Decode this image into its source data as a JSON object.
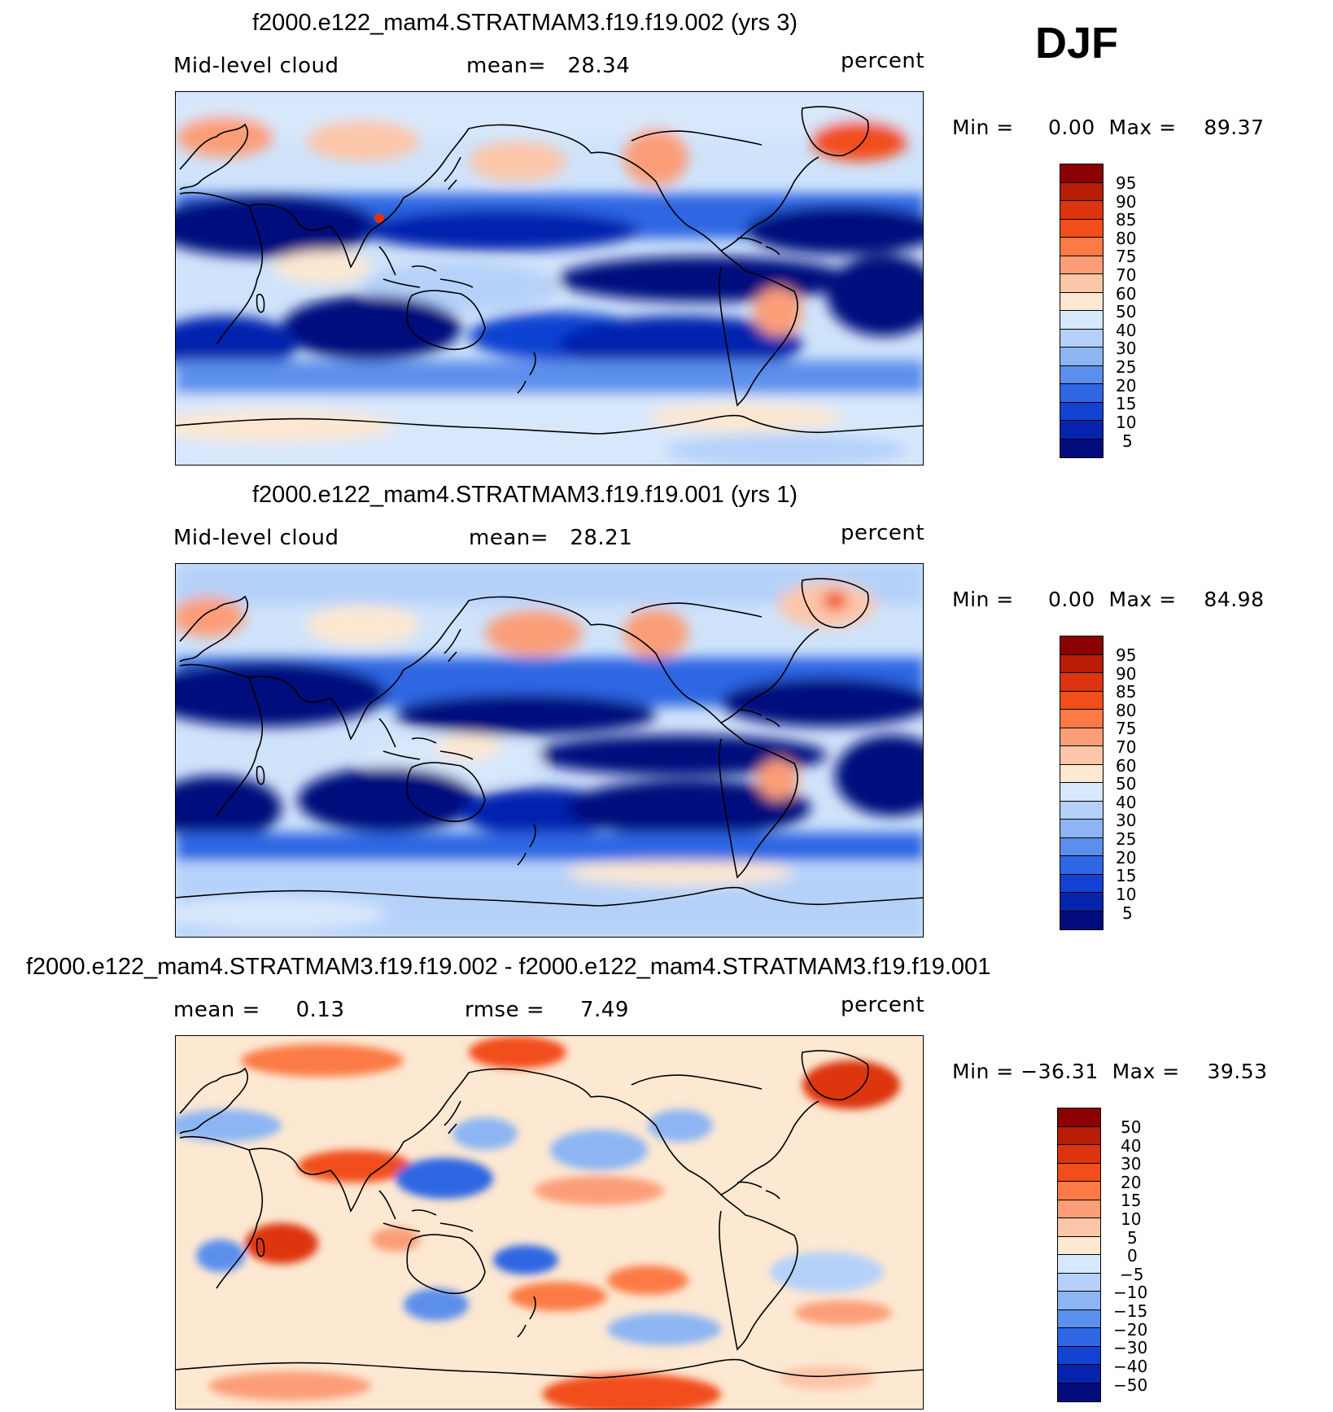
{
  "season": "DJF",
  "panels": [
    {
      "title": "f2000.e122_mam4.STRATMAM3.f19.f19.002 (yrs 3)",
      "left_label": "Mid-level cloud",
      "center_label": "mean=   28.34",
      "right_label": "percent",
      "minmax": "Min =     0.00  Max =    89.37",
      "colorbar": {
        "labels": [
          "95",
          "90",
          "85",
          "80",
          "75",
          "70",
          "60",
          "50",
          "40",
          "30",
          "25",
          "20",
          "15",
          "10",
          "5"
        ],
        "colors": [
          "#8b0000",
          "#b81d05",
          "#dd3410",
          "#f24e1b",
          "#fb7a45",
          "#fb9e78",
          "#fcc6a9",
          "#fde8d2",
          "#d8e8fc",
          "#b5d1f9",
          "#8db5f3",
          "#5b8fec",
          "#2f66e3",
          "#1142d2",
          "#0524ae",
          "#020c7d"
        ]
      }
    },
    {
      "title": "f2000.e122_mam4.STRATMAM3.f19.f19.001 (yrs 1)",
      "left_label": "Mid-level cloud",
      "center_label": "mean=   28.21",
      "right_label": "percent",
      "minmax": "Min =     0.00  Max =    84.98",
      "colorbar": {
        "labels": [
          "95",
          "90",
          "85",
          "80",
          "75",
          "70",
          "60",
          "50",
          "40",
          "30",
          "25",
          "20",
          "15",
          "10",
          "5"
        ],
        "colors": [
          "#8b0000",
          "#b81d05",
          "#dd3410",
          "#f24e1b",
          "#fb7a45",
          "#fb9e78",
          "#fcc6a9",
          "#fde8d2",
          "#d8e8fc",
          "#b5d1f9",
          "#8db5f3",
          "#5b8fec",
          "#2f66e3",
          "#1142d2",
          "#0524ae",
          "#020c7d"
        ]
      }
    },
    {
      "title": "f2000.e122_mam4.STRATMAM3.f19.f19.002 - f2000.e122_mam4.STRATMAM3.f19.f19.001",
      "left_label": "mean =     0.13",
      "center_label": "rmse =     7.49",
      "right_label": "percent",
      "minmax": "Min = −36.31  Max =    39.53",
      "colorbar": {
        "labels": [
          "50",
          "40",
          "30",
          "20",
          "15",
          "10",
          "5",
          "0",
          "−5",
          "−10",
          "−15",
          "−20",
          "−30",
          "−40",
          "−50"
        ],
        "colors": [
          "#8b0000",
          "#b81d05",
          "#dd3410",
          "#f24e1b",
          "#fb7a45",
          "#fb9e78",
          "#fcc6a9",
          "#fde8d2",
          "#d8e8fc",
          "#b5d1f9",
          "#8db5f3",
          "#5b8fec",
          "#2f66e3",
          "#1142d2",
          "#0524ae",
          "#020c7d"
        ]
      }
    }
  ]
}
